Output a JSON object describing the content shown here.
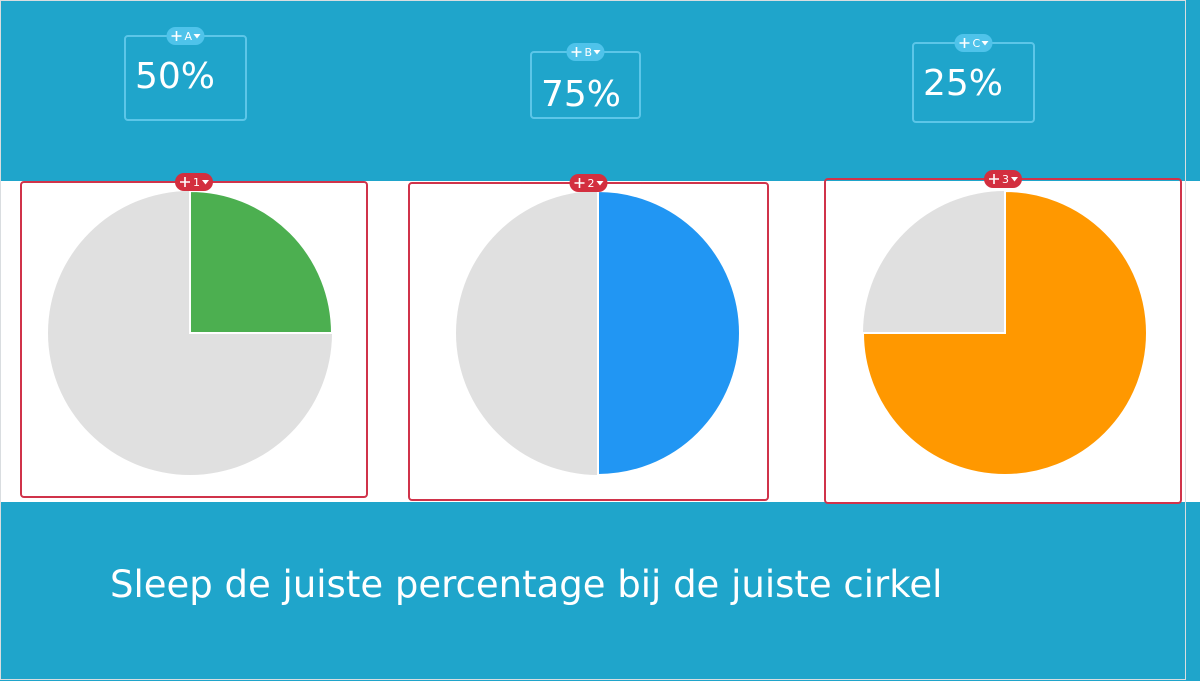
{
  "draggables": [
    {
      "tag": "A",
      "label": "50%"
    },
    {
      "tag": "B",
      "label": "75%"
    },
    {
      "tag": "C",
      "label": "25%"
    }
  ],
  "drop_zones": [
    {
      "tag": "1",
      "percent": 25,
      "color": "#4caf50"
    },
    {
      "tag": "2",
      "percent": 50,
      "color": "#2196f3"
    },
    {
      "tag": "3",
      "percent": 75,
      "color": "#ff9800"
    }
  ],
  "instruction": "Sleep de juiste percentage bij de juiste cirkel"
}
